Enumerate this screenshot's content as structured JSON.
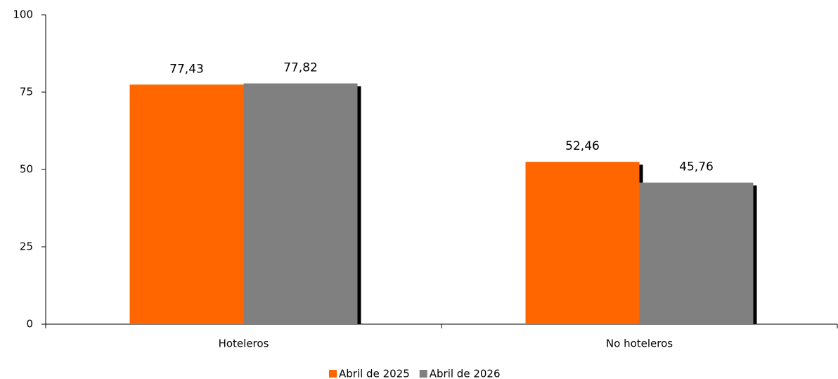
{
  "chart_data": {
    "type": "bar",
    "categories": [
      "Hoteleros",
      "No hoteleros"
    ],
    "series": [
      {
        "name": "Abril de 2025",
        "color": "#ff6600",
        "values": [
          77.43,
          52.46
        ],
        "value_labels": [
          "77,43",
          "52,46"
        ]
      },
      {
        "name": "Abril de 2026",
        "color": "#808080",
        "values": [
          77.82,
          45.76
        ],
        "value_labels": [
          "77,82",
          "45,76"
        ]
      }
    ],
    "ylim": [
      0,
      100
    ],
    "yticks": [
      0,
      25,
      50,
      75,
      100
    ],
    "grid": false,
    "legend": "bottom"
  }
}
